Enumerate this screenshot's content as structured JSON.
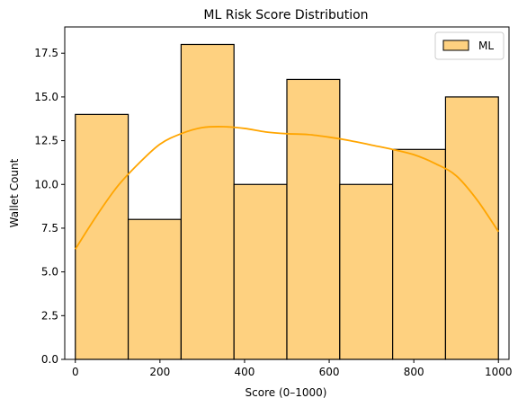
{
  "chart_data": {
    "type": "bar",
    "title": "ML Risk Score Distribution",
    "xlabel": "Score (0–1000)",
    "ylabel": "Wallet Count",
    "bin_edges": [
      0,
      125,
      250,
      375,
      500,
      625,
      750,
      875,
      1000
    ],
    "values": [
      14,
      8,
      18,
      10,
      16,
      10,
      12,
      15
    ],
    "xlim": [
      -25,
      1025
    ],
    "ylim": [
      0,
      19
    ],
    "xticks": [
      0,
      200,
      400,
      600,
      800,
      1000
    ],
    "xtick_labels": [
      "0",
      "200",
      "400",
      "600",
      "800",
      "1000"
    ],
    "yticks": [
      0,
      2.5,
      5,
      7.5,
      10,
      12.5,
      15,
      17.5
    ],
    "ytick_labels": [
      "0.0",
      "2.5",
      "5.0",
      "7.5",
      "10.0",
      "12.5",
      "15.0",
      "17.5"
    ],
    "kde": {
      "x": [
        0,
        50,
        100,
        150,
        200,
        250,
        300,
        350,
        400,
        450,
        500,
        550,
        600,
        650,
        700,
        750,
        800,
        850,
        900,
        950,
        1000
      ],
      "y": [
        6.3,
        8.2,
        9.9,
        11.2,
        12.3,
        12.9,
        13.25,
        13.3,
        13.2,
        13.0,
        12.9,
        12.85,
        12.7,
        12.5,
        12.25,
        12.0,
        11.7,
        11.2,
        10.5,
        9.1,
        7.3
      ]
    },
    "series": [
      {
        "name": "ML",
        "bar_color": "#FED180",
        "edge_color": "#000000",
        "line_color": "#FFA500"
      }
    ],
    "legend": {
      "placement": "top-right"
    },
    "grid": false
  }
}
